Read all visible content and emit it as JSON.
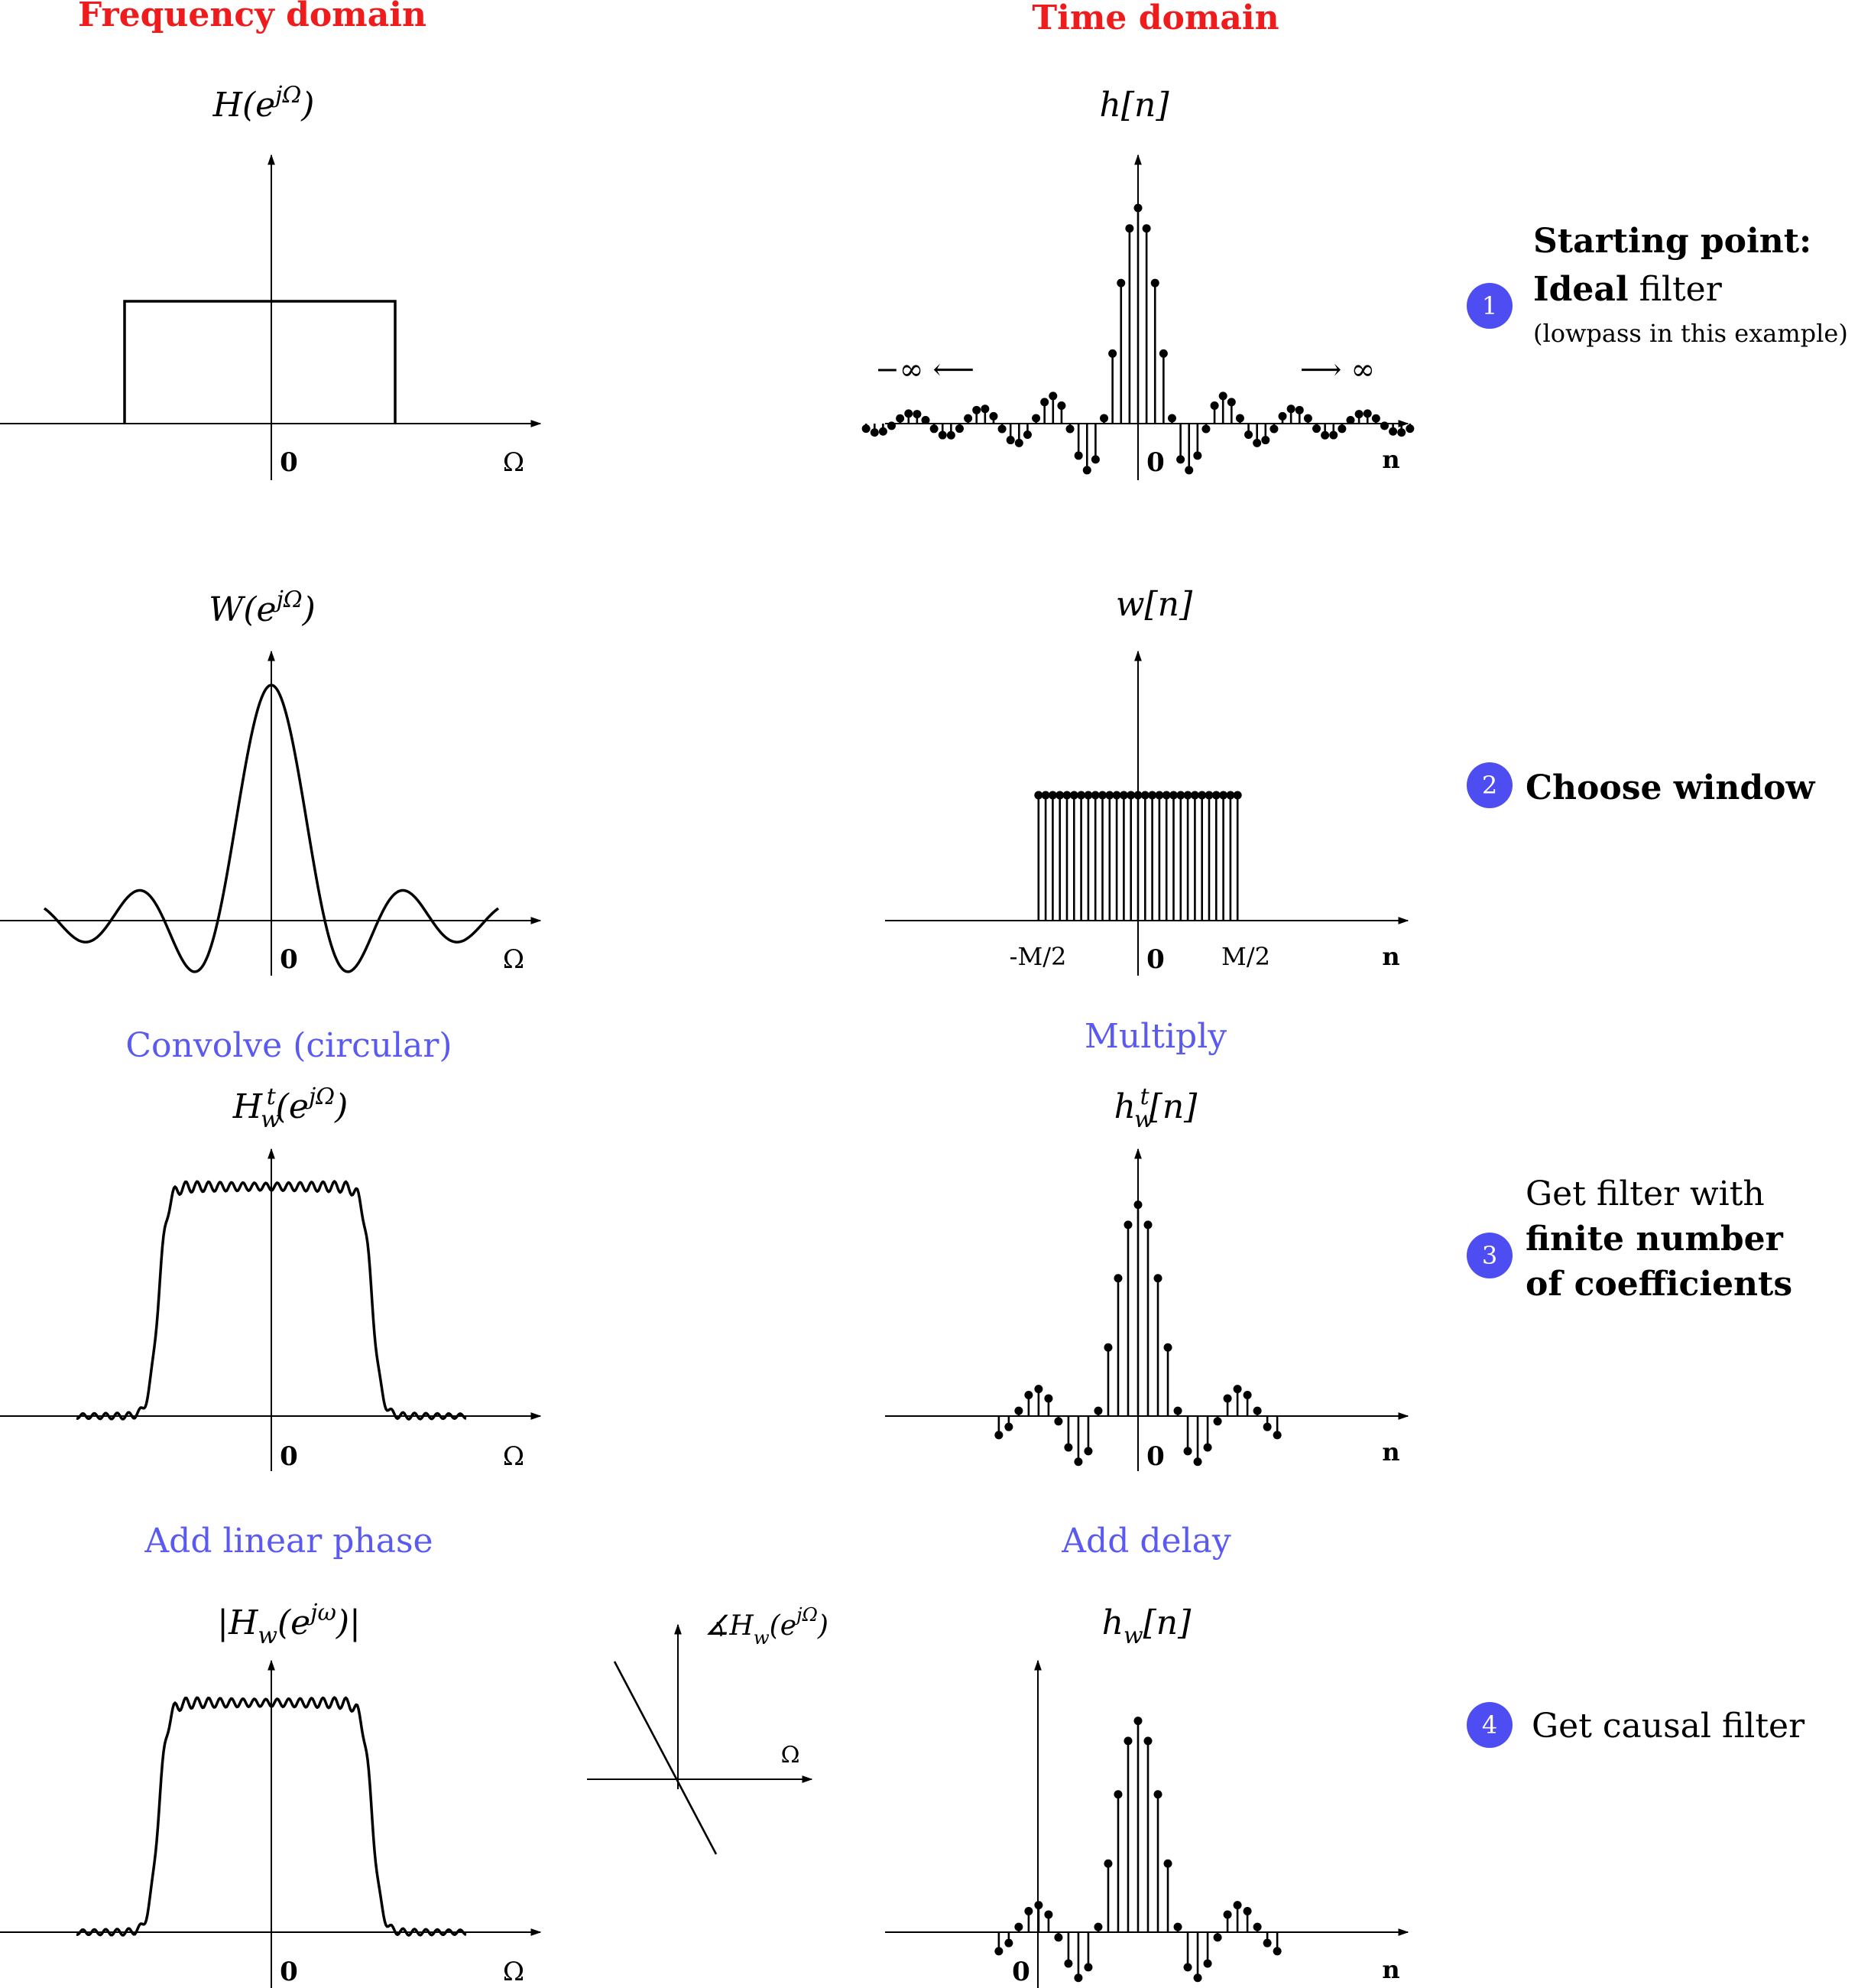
{
  "headers": {
    "frequency": "Frequency domain",
    "time": "Time domain"
  },
  "colors": {
    "header": "#ee1c1c",
    "operation": "#5a5af0",
    "badge": "#4d4df2",
    "ink": "#000000"
  },
  "operations": {
    "convolve": "Convolve (circular)",
    "multiply": "Multiply",
    "linear_phase": "Add linear phase",
    "delay": "Add delay"
  },
  "plot_titles": {
    "H": [
      "H(e",
      "jΩ",
      ")"
    ],
    "h": "h[n]",
    "W": [
      "W(e",
      "jΩ",
      ")"
    ],
    "w": "w[n]",
    "Hwt": [
      "H",
      "w",
      "t",
      "(e",
      "jΩ",
      ")"
    ],
    "hwt": [
      "h",
      "w",
      "t",
      "[n]"
    ],
    "Hw_mag": [
      "|H",
      "w",
      "(e",
      "jω",
      ")|"
    ],
    "phase": [
      "∡H",
      "w",
      "(e",
      "jΩ",
      ")"
    ],
    "hw": [
      "h",
      "w",
      "[n]"
    ]
  },
  "axis_labels": {
    "omega": "Ω",
    "n": "n",
    "zero": "0",
    "minus_half": "-M/2",
    "plus_half": "M/2",
    "neg_inf": "−∞ ⟵",
    "pos_inf": "⟶  ∞"
  },
  "steps": [
    {
      "number": "1",
      "lines": [
        {
          "parts": [
            {
              "t": "Starting point:",
              "bold": true
            }
          ],
          "size": 44
        },
        {
          "parts": [
            {
              "t": "Ideal",
              "bold": true
            },
            {
              "t": " filter",
              "bold": false
            }
          ],
          "size": 44
        },
        {
          "parts": [
            {
              "t": "(lowpass in this example)",
              "bold": false
            }
          ],
          "size": 32
        }
      ]
    },
    {
      "number": "2",
      "lines": [
        {
          "parts": [
            {
              "t": "Choose window",
              "bold": true
            }
          ],
          "size": 44
        }
      ]
    },
    {
      "number": "3",
      "lines": [
        {
          "parts": [
            {
              "t": "Get filter with",
              "bold": false
            }
          ],
          "size": 44
        },
        {
          "parts": [
            {
              "t": "finite number",
              "bold": true
            }
          ],
          "size": 44
        },
        {
          "parts": [
            {
              "t": "of coefficients",
              "bold": true
            }
          ],
          "size": 44
        }
      ]
    },
    {
      "number": "4",
      "lines": [
        {
          "parts": [
            {
              "t": "Get causal filter",
              "bold": false
            }
          ],
          "size": 44
        }
      ]
    }
  ]
}
